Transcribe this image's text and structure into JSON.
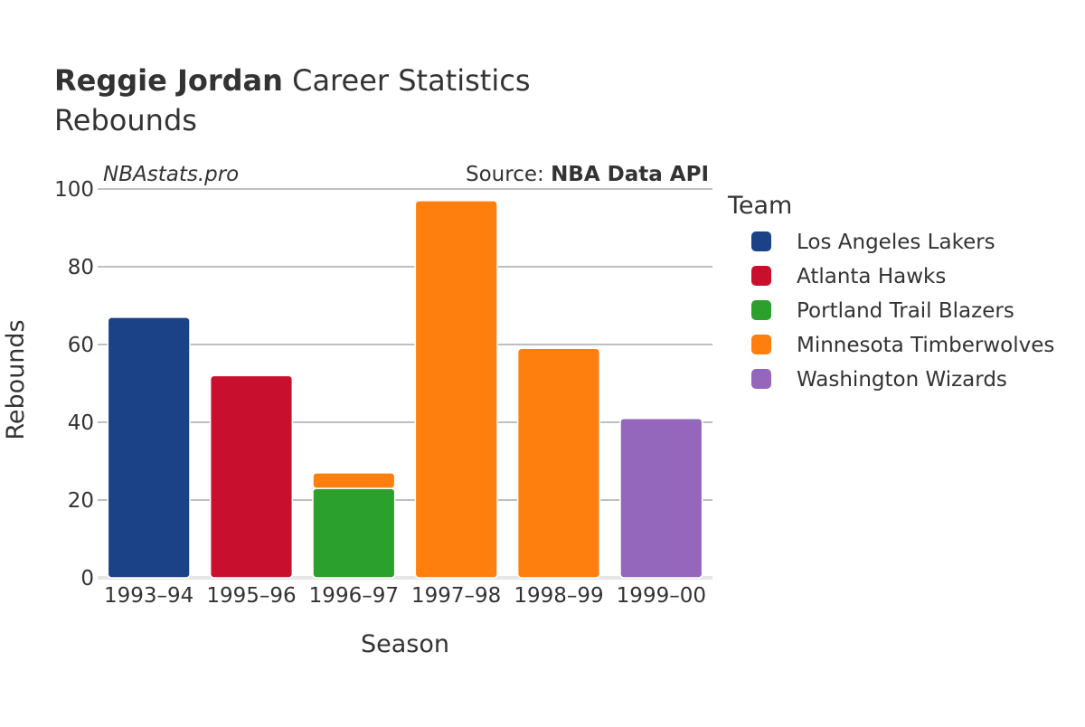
{
  "title": {
    "player": "Reggie Jordan",
    "suffix": " Career Statistics",
    "subtitle": "Rebounds"
  },
  "watermark": "NBAstats.pro",
  "source": {
    "prefix": "Source: ",
    "name": "NBA Data API"
  },
  "legend": {
    "title": "Team",
    "placement": "right"
  },
  "chart_data": {
    "type": "bar",
    "stacked": true,
    "categories": [
      "1993–94",
      "1995–96",
      "1996–97",
      "1997–98",
      "1998–99",
      "1999–00"
    ],
    "series": [
      {
        "name": "Los Angeles Lakers",
        "color": "#1b4187",
        "values": [
          67,
          0,
          0,
          0,
          0,
          0
        ]
      },
      {
        "name": "Atlanta Hawks",
        "color": "#c8102e",
        "values": [
          0,
          52,
          0,
          0,
          0,
          0
        ]
      },
      {
        "name": "Portland Trail Blazers",
        "color": "#2ca02c",
        "values": [
          0,
          0,
          23,
          0,
          0,
          0
        ]
      },
      {
        "name": "Minnesota Timberwolves",
        "color": "#ff7f0e",
        "values": [
          0,
          0,
          4,
          97,
          59,
          0
        ]
      },
      {
        "name": "Washington Wizards",
        "color": "#9467bd",
        "values": [
          0,
          0,
          0,
          0,
          0,
          41
        ]
      }
    ],
    "xlabel": "Season",
    "ylabel": "Rebounds",
    "ylim": [
      0,
      100
    ],
    "yticks": [
      0,
      20,
      40,
      60,
      80,
      100
    ],
    "grid": true
  }
}
